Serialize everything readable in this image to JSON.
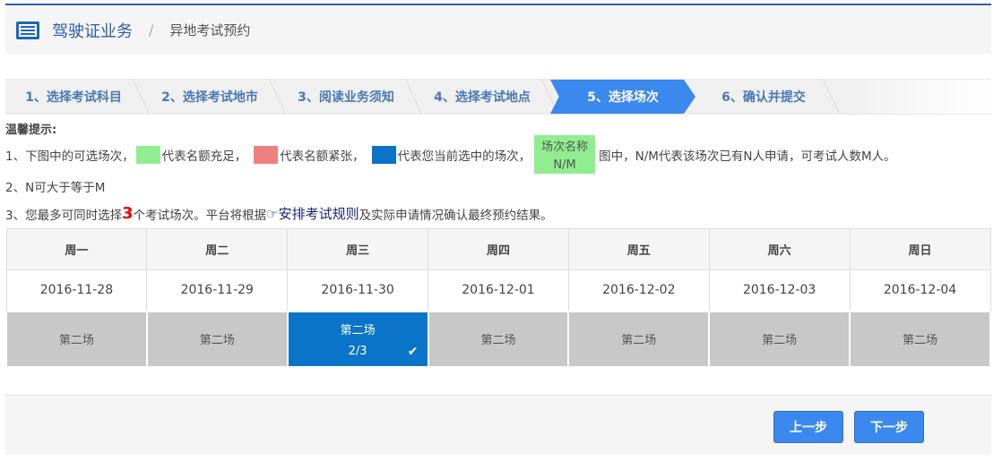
{
  "header": {
    "section": "驾驶证业务",
    "separator": "/",
    "page": "异地考试预约"
  },
  "steps": [
    {
      "label": "1、选择考试科目"
    },
    {
      "label": "2、选择考试地市"
    },
    {
      "label": "3、阅读业务须知"
    },
    {
      "label": "4、选择考试地点"
    },
    {
      "label": "5、选择场次",
      "active": true
    },
    {
      "label": "6、确认并提交"
    }
  ],
  "tips": {
    "title": "温馨提示:",
    "line1": {
      "a": "1、下图中的可选场次，",
      "b": "代表名额充足，",
      "c": "代表名额紧张，",
      "d": "代表您当前选中的场次，",
      "legend_name": "场次名称",
      "legend_nm": "N/M",
      "e": "图中，N/M代表该场次已有N人申请，可考试人数M人。"
    },
    "line2": "2、N可大于等于M",
    "line3": {
      "a": "3、您最多可同时选择",
      "num": "3",
      "b": "个考试场次。平台将根据",
      "link": "安排考试规则",
      "c": "及实际申请情况确认最终预约结果。"
    },
    "colors": {
      "sufficient": "#90ee90",
      "tight": "#f08080",
      "selected": "#0a74c8"
    }
  },
  "schedule": {
    "days": [
      "周一",
      "周二",
      "周三",
      "周四",
      "周五",
      "周六",
      "周日"
    ],
    "dates": [
      "2016-11-28",
      "2016-11-29",
      "2016-11-30",
      "2016-12-01",
      "2016-12-02",
      "2016-12-03",
      "2016-12-04"
    ],
    "sessions": [
      {
        "name": "第二场"
      },
      {
        "name": "第二场"
      },
      {
        "name": "第二场",
        "count": "2/3",
        "selected": true
      },
      {
        "name": "第二场"
      },
      {
        "name": "第二场"
      },
      {
        "name": "第二场"
      },
      {
        "name": "第二场"
      }
    ]
  },
  "footer": {
    "prev": "上一步",
    "next": "下一步"
  }
}
